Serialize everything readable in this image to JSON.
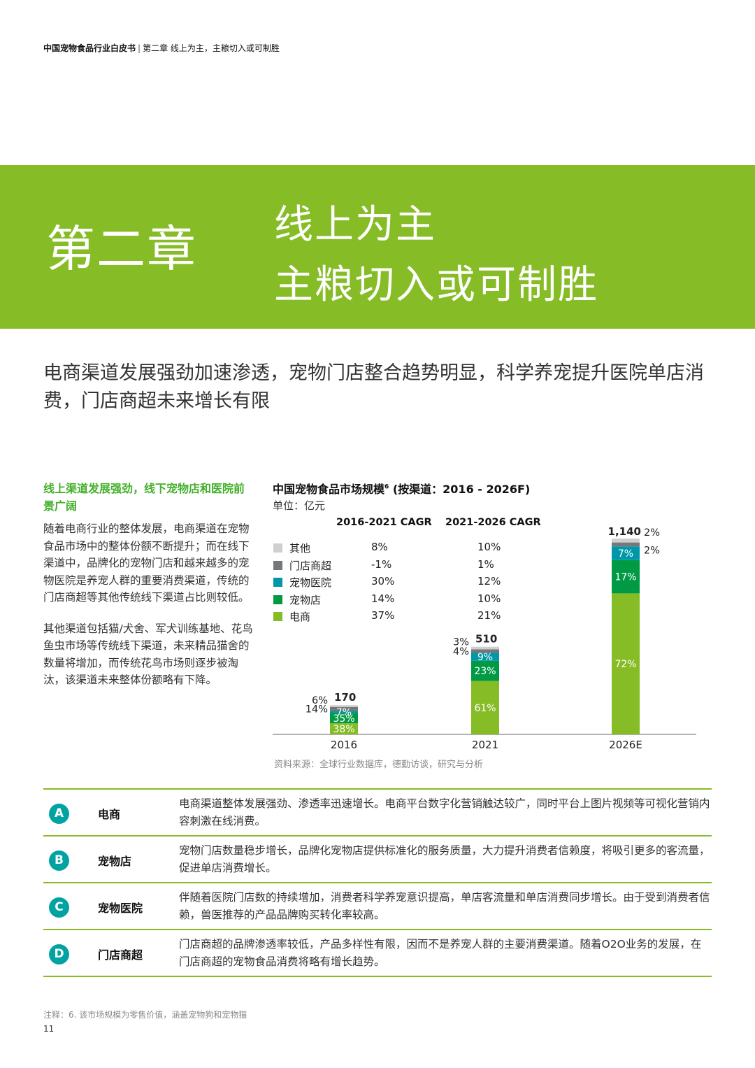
{
  "header": {
    "doc_title": "中国宠物食品行业白皮书",
    "separator": "|",
    "chapter_ref": "第二章 线上为主，主粮切入或可制胜"
  },
  "banner": {
    "chapter_label": "第二章",
    "title_line1": "线上为主",
    "title_line2": "主粮切入或可制胜",
    "color": "#86bc25"
  },
  "subtitle": "电商渠道发展强劲加速渗透，宠物门店整合趋势明显，科学养宠提升医院单店消费，门店商超未来增长有限",
  "left_column": {
    "heading": "线上渠道发展强劲，线下宠物店和医院前景广阔",
    "paragraph1": "随着电商行业的整体发展，电商渠道在宠物食品市场中的整体份额不断提升；而在线下渠道中，品牌化的宠物门店和越来越多的宠物医院是养宠人群的重要消费渠道，传统的门店商超等其他传统线下渠道占比则较低。",
    "paragraph2": "其他渠道包括猫/犬舍、军犬训练基地、花鸟鱼虫市场等传统线下渠道，未来精品猫舍的数量将增加，而传统花鸟市场则逐步被淘汰，该渠道未来整体份额略有下降。"
  },
  "chart": {
    "title": "中国宠物食品市场规模",
    "title_sup": "6",
    "title_suffix": " (按渠道：2016 - 2026F)",
    "unit": "单位：亿元",
    "cagr_header_1": "2016-2021 CAGR",
    "cagr_header_2": "2021-2026 CAGR",
    "legend": [
      {
        "label": "其他",
        "cagr1": "8%",
        "cagr2": "10%",
        "color": "#cfcfcf"
      },
      {
        "label": "门店商超",
        "cagr1": "-1%",
        "cagr2": "1%",
        "color": "#75787b"
      },
      {
        "label": "宠物医院",
        "cagr1": "30%",
        "cagr2": "12%",
        "color": "#0097a9"
      },
      {
        "label": "宠物店",
        "cagr1": "14%",
        "cagr2": "10%",
        "color": "#009a44"
      },
      {
        "label": "电商",
        "cagr1": "37%",
        "cagr2": "21%",
        "color": "#86bc25"
      }
    ],
    "source": "资料来源：全球行业数据库，德勤访谈，研究与分析"
  },
  "chart_data": {
    "type": "bar",
    "stacked": true,
    "categories": [
      "2016",
      "2021",
      "2026E"
    ],
    "totals": [
      170,
      510,
      1140
    ],
    "total_labels": [
      "170",
      "510",
      "1,140"
    ],
    "series": [
      {
        "name": "电商",
        "shares": [
          38,
          61,
          72
        ],
        "labels": [
          "38%",
          "61%",
          "72%"
        ],
        "color": "#86bc25"
      },
      {
        "name": "宠物店",
        "shares": [
          35,
          23,
          17
        ],
        "labels": [
          "35%",
          "23%",
          "17%"
        ],
        "color": "#009a44"
      },
      {
        "name": "宠物医院",
        "shares": [
          7,
          9,
          7
        ],
        "labels": [
          "7%",
          "9%",
          "7%"
        ],
        "color": "#0097a9"
      },
      {
        "name": "门店商超",
        "shares": [
          14,
          4,
          2
        ],
        "labels": [
          "14%",
          "4%",
          "2%"
        ],
        "color": "#75787b"
      },
      {
        "name": "其他",
        "shares": [
          6,
          3,
          2
        ],
        "labels": [
          "6%",
          "3%",
          "2%"
        ],
        "color": "#cfcfcf"
      }
    ],
    "ylim": [
      0,
      1140
    ],
    "legend_position": "top-left"
  },
  "table": [
    {
      "letter": "A",
      "name": "电商",
      "desc": "电商渠道整体发展强劲、渗透率迅速增长。电商平台数字化营销触达较广，同时平台上图片视频等可视化营销内容刺激在线消费。"
    },
    {
      "letter": "B",
      "name": "宠物店",
      "desc": "宠物门店数量稳步增长，品牌化宠物店提供标准化的服务质量，大力提升消费者信赖度，将吸引更多的客流量，促进单店消费增长。"
    },
    {
      "letter": "C",
      "name": "宠物医院",
      "desc": "伴随着医院门店数的持续增加，消费者科学养宠意识提高，单店客流量和单店消费同步增长。由于受到消费者信赖，兽医推荐的产品品牌购买转化率较高。"
    },
    {
      "letter": "D",
      "name": "门店商超",
      "desc": "门店商超的品牌渗透率较低，产品多样性有限，因而不是养宠人群的主要消费渠道。随着O2O业务的发展，在门店商超的宠物食品消费将略有增长趋势。"
    }
  ],
  "footnote": "注释：6. 该市场规模为零售价值，涵盖宠物狗和宠物猫",
  "page_number": "11"
}
